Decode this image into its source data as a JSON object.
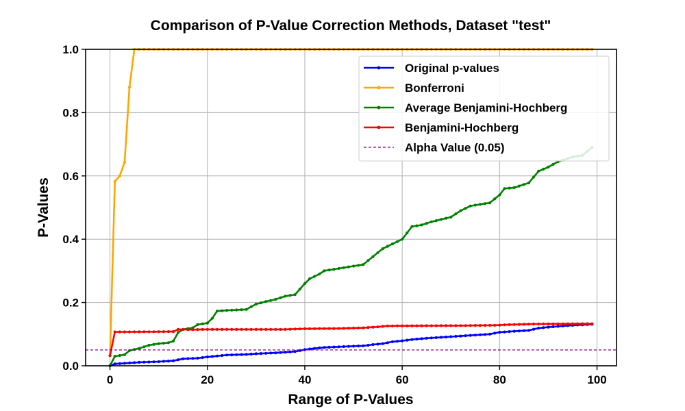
{
  "chart_data": {
    "type": "line",
    "title": "Comparison of P-Value Correction Methods, Dataset \"test\"",
    "xlabel": "Range of P-Values",
    "ylabel": "P-Values",
    "xlim": [
      -5,
      104
    ],
    "ylim": [
      0,
      1
    ],
    "x_ticks": [
      "0",
      "20",
      "40",
      "60",
      "80",
      "100"
    ],
    "x_tick_values": [
      0,
      20,
      40,
      60,
      80,
      100
    ],
    "y_ticks": [
      "0.0",
      "0.2",
      "0.4",
      "0.6",
      "0.8",
      "1.0"
    ],
    "y_tick_values": [
      0,
      0.2,
      0.4,
      0.6,
      0.8,
      1.0
    ],
    "grid": true,
    "legend_position": "top-right",
    "alpha_line": {
      "name": "Alpha Value (0.05)",
      "value": 0.05,
      "color": "#800080"
    },
    "series": [
      {
        "name": "Original p-values",
        "color": "#0000ff",
        "anchors": [
          [
            0,
            0.0003
          ],
          [
            1,
            0.006
          ],
          [
            3,
            0.008
          ],
          [
            6,
            0.011
          ],
          [
            10,
            0.013
          ],
          [
            13,
            0.016
          ],
          [
            15,
            0.022
          ],
          [
            18,
            0.024
          ],
          [
            20,
            0.028
          ],
          [
            22,
            0.031
          ],
          [
            24,
            0.034
          ],
          [
            28,
            0.036
          ],
          [
            30,
            0.038
          ],
          [
            34,
            0.041
          ],
          [
            38,
            0.045
          ],
          [
            40,
            0.051
          ],
          [
            42,
            0.055
          ],
          [
            44,
            0.058
          ],
          [
            47,
            0.06
          ],
          [
            50,
            0.062
          ],
          [
            52,
            0.063
          ],
          [
            54,
            0.067
          ],
          [
            56,
            0.07
          ],
          [
            58,
            0.076
          ],
          [
            60,
            0.079
          ],
          [
            62,
            0.083
          ],
          [
            65,
            0.087
          ],
          [
            68,
            0.09
          ],
          [
            72,
            0.094
          ],
          [
            75,
            0.097
          ],
          [
            78,
            0.1
          ],
          [
            80,
            0.106
          ],
          [
            83,
            0.109
          ],
          [
            86,
            0.112
          ],
          [
            88,
            0.119
          ],
          [
            90,
            0.122
          ],
          [
            93,
            0.126
          ],
          [
            96,
            0.129
          ],
          [
            99,
            0.131
          ]
        ]
      },
      {
        "name": "Bonferroni",
        "color": "#ffa500",
        "anchors": [
          [
            0,
            0.032
          ],
          [
            1,
            0.583
          ],
          [
            2,
            0.6
          ],
          [
            3,
            0.643
          ],
          [
            4,
            0.88
          ],
          [
            5,
            1.0
          ],
          [
            99,
            1.0
          ]
        ]
      },
      {
        "name": "Average Benjamini-Hochberg",
        "color": "#008000",
        "anchors": [
          [
            0,
            0.0003
          ],
          [
            1,
            0.03
          ],
          [
            3,
            0.035
          ],
          [
            4,
            0.048
          ],
          [
            6,
            0.055
          ],
          [
            8,
            0.065
          ],
          [
            10,
            0.07
          ],
          [
            12,
            0.073
          ],
          [
            13,
            0.078
          ],
          [
            14,
            0.105
          ],
          [
            15,
            0.115
          ],
          [
            17,
            0.12
          ],
          [
            18,
            0.13
          ],
          [
            20,
            0.135
          ],
          [
            21,
            0.15
          ],
          [
            22,
            0.173
          ],
          [
            24,
            0.175
          ],
          [
            28,
            0.178
          ],
          [
            30,
            0.195
          ],
          [
            32,
            0.203
          ],
          [
            34,
            0.21
          ],
          [
            36,
            0.22
          ],
          [
            38,
            0.225
          ],
          [
            40,
            0.26
          ],
          [
            41,
            0.275
          ],
          [
            43,
            0.29
          ],
          [
            44,
            0.3
          ],
          [
            48,
            0.31
          ],
          [
            50,
            0.315
          ],
          [
            52,
            0.32
          ],
          [
            54,
            0.345
          ],
          [
            56,
            0.37
          ],
          [
            58,
            0.385
          ],
          [
            60,
            0.4
          ],
          [
            62,
            0.44
          ],
          [
            64,
            0.445
          ],
          [
            66,
            0.455
          ],
          [
            70,
            0.47
          ],
          [
            72,
            0.49
          ],
          [
            74,
            0.505
          ],
          [
            76,
            0.51
          ],
          [
            78,
            0.515
          ],
          [
            80,
            0.54
          ],
          [
            81,
            0.56
          ],
          [
            83,
            0.563
          ],
          [
            86,
            0.578
          ],
          [
            88,
            0.615
          ],
          [
            90,
            0.628
          ],
          [
            92,
            0.645
          ],
          [
            95,
            0.66
          ],
          [
            97,
            0.665
          ],
          [
            99,
            0.69
          ]
        ]
      },
      {
        "name": "Benjamini-Hochberg",
        "color": "#ff0000",
        "anchors": [
          [
            0,
            0.032
          ],
          [
            1,
            0.107
          ],
          [
            13,
            0.108
          ],
          [
            14,
            0.115
          ],
          [
            17,
            0.114
          ],
          [
            19,
            0.115
          ],
          [
            30,
            0.115
          ],
          [
            36,
            0.115
          ],
          [
            40,
            0.117
          ],
          [
            47,
            0.118
          ],
          [
            52,
            0.12
          ],
          [
            55,
            0.123
          ],
          [
            57,
            0.126
          ],
          [
            72,
            0.127
          ],
          [
            79,
            0.128
          ],
          [
            82,
            0.13
          ],
          [
            87,
            0.132
          ],
          [
            99,
            0.133
          ]
        ]
      }
    ]
  }
}
